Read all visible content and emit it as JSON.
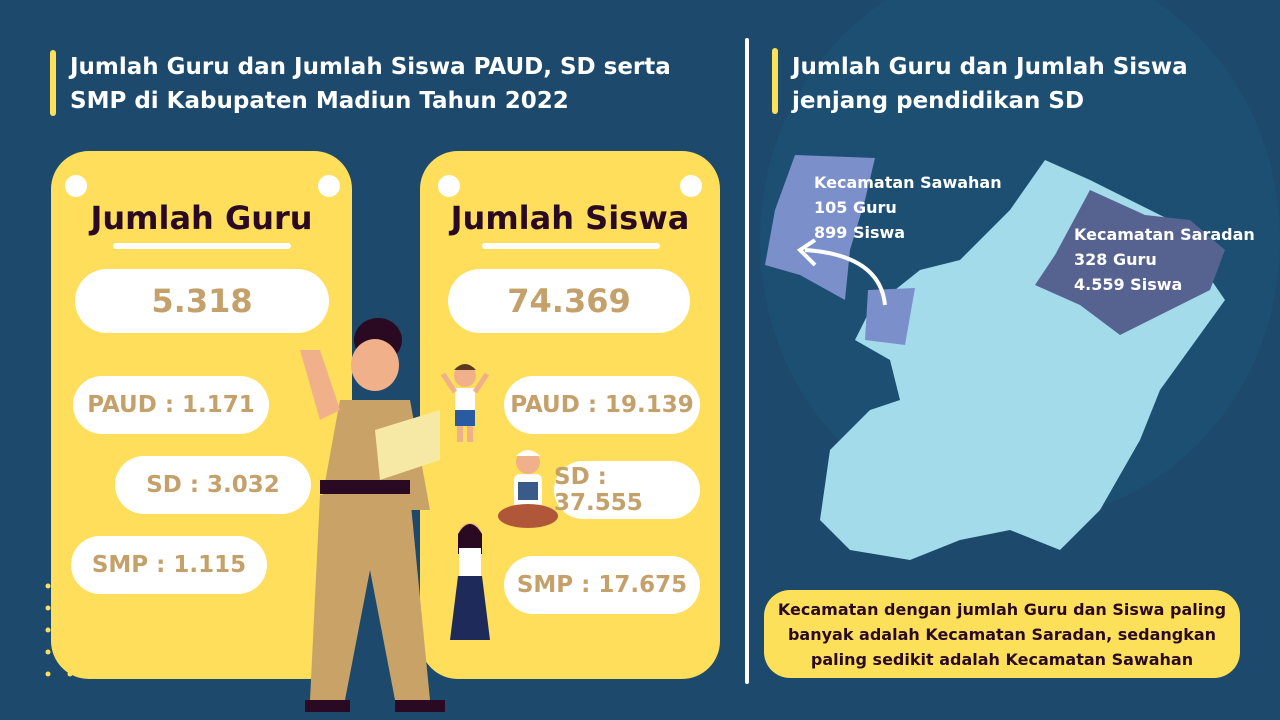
{
  "left": {
    "title_line1": "Jumlah Guru dan Jumlah Siswa PAUD, SD serta",
    "title_line2": "SMP di Kabupaten Madiun Tahun 2022"
  },
  "right": {
    "title_line1": "Jumlah Guru dan Jumlah Siswa",
    "title_line2": "jenjang pendidikan SD"
  },
  "guru": {
    "heading": "Jumlah Guru",
    "total": "5.318",
    "paud": "PAUD : 1.171",
    "sd": "SD : 3.032",
    "smp": "SMP : 1.115"
  },
  "siswa": {
    "heading": "Jumlah Siswa",
    "total": "74.369",
    "paud": "PAUD : 19.139",
    "sd": "SD : 37.555",
    "smp": "SMP : 17.675"
  },
  "map": {
    "sawahan": {
      "name": "Kecamatan Sawahan",
      "guru": "105 Guru",
      "siswa": "899 Siswa",
      "color": "#7b8fcb"
    },
    "saradan": {
      "name": "Kecamatan Saradan",
      "guru": "328 Guru",
      "siswa": "4.559 Siswa",
      "color": "#566391"
    },
    "base_color": "#a3dbeb"
  },
  "note": "Kecamatan dengan jumlah Guru dan Siswa paling banyak adalah Kecamatan Saradan, sedangkan paling sedikit adalah Kecamatan Sawahan",
  "colors": {
    "background": "#1d4a6c",
    "card": "#fede5a",
    "accent_text": "#c4a06a"
  }
}
